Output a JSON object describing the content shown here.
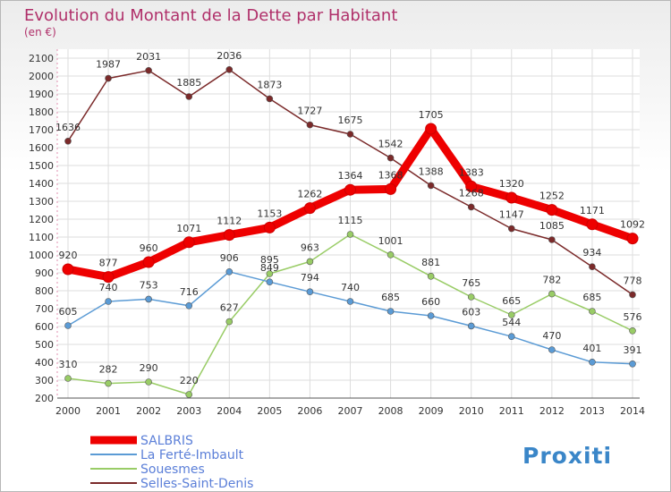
{
  "chart_data": {
    "type": "line",
    "title": "Evolution du Montant de la Dette par Habitant",
    "subtitle": "(en €)",
    "xlabel": "",
    "ylabel": "",
    "x": [
      "2000",
      "2001",
      "2002",
      "2003",
      "2004",
      "2005",
      "2006",
      "2007",
      "2008",
      "2009",
      "2010",
      "2011",
      "2012",
      "2013",
      "2014"
    ],
    "ylim": [
      200,
      2100
    ],
    "yticks": [
      200,
      300,
      400,
      500,
      600,
      700,
      800,
      900,
      1000,
      1100,
      1200,
      1300,
      1400,
      1500,
      1600,
      1700,
      1800,
      1900,
      2000,
      2100
    ],
    "grid": true,
    "legend_position": "bottom-left",
    "series": [
      {
        "name": "SALBRIS",
        "color": "#ee0000",
        "values": [
          920,
          877,
          960,
          1071,
          1112,
          1153,
          1262,
          1364,
          1368,
          1705,
          1383,
          1320,
          1252,
          1171,
          1092
        ]
      },
      {
        "name": "La Ferté-Imbault",
        "color": "#5b9bd5",
        "values": [
          605,
          740,
          753,
          716,
          906,
          849,
          794,
          740,
          685,
          660,
          603,
          544,
          470,
          401,
          391
        ]
      },
      {
        "name": "Souesmes",
        "color": "#99cc66",
        "values": [
          310,
          282,
          290,
          220,
          627,
          895,
          963,
          1115,
          1001,
          881,
          765,
          665,
          782,
          685,
          576
        ]
      },
      {
        "name": "Selles-Saint-Denis",
        "color": "#7b2a2a",
        "values": [
          1636,
          1987,
          2031,
          1885,
          2036,
          1873,
          1727,
          1675,
          1542,
          1388,
          1268,
          1147,
          1085,
          934,
          778
        ]
      }
    ],
    "data_labels": {
      "SALBRIS": [
        "920",
        "877",
        "960",
        "1071",
        "1112",
        "1153",
        "1262",
        "1364",
        "1368",
        "1705",
        "1383",
        "1320",
        "1252",
        "1171",
        "1092"
      ],
      "La Ferté-Imbault": [
        "605",
        "740",
        "753",
        "716",
        "906",
        "849",
        "794",
        "740",
        "685",
        "660",
        "603",
        "544",
        "470",
        "401",
        "391"
      ],
      "Souesmes": [
        "310",
        "282",
        "290",
        "220",
        "627",
        "895",
        "963",
        "1115",
        "1001",
        "881",
        "765",
        "665",
        "782",
        "685",
        "576"
      ],
      "Selles-Saint-Denis": [
        "1636",
        "1987",
        "2031",
        "1885",
        "2036",
        "1873",
        "1727",
        "1675",
        "1542",
        "1388",
        "1268",
        "1147",
        "1085",
        "934",
        "778"
      ]
    }
  },
  "logo": {
    "text": "Proxiti"
  }
}
